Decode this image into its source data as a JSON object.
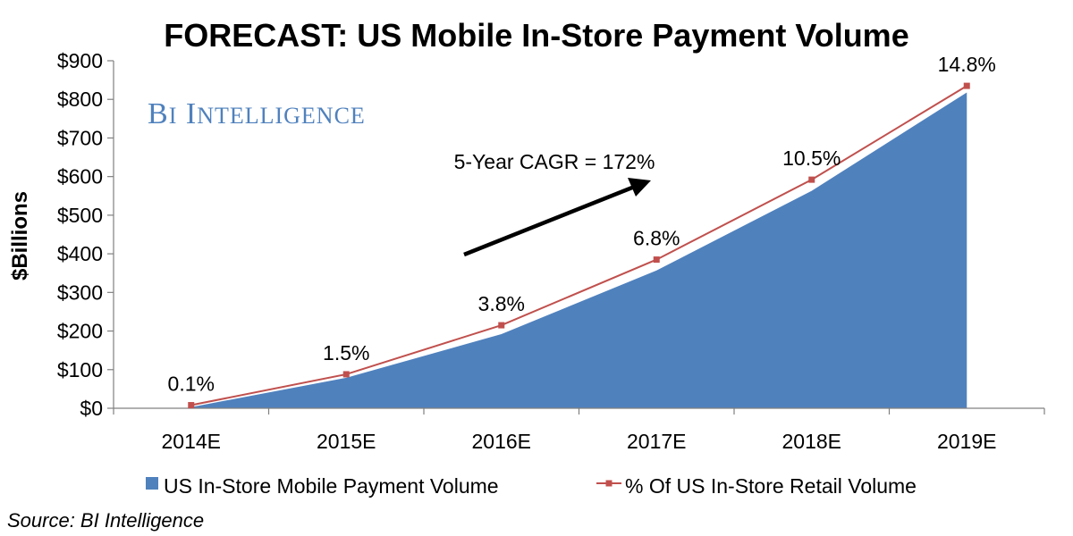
{
  "chart_data": {
    "type": "area",
    "title": "FORECAST: US Mobile In-Store Payment Volume",
    "xlabel": "",
    "ylabel": "$Billions",
    "categories": [
      "2014E",
      "2015E",
      "2016E",
      "2017E",
      "2018E",
      "2019E"
    ],
    "ylim": [
      0,
      900
    ],
    "yticks": [
      0,
      100,
      200,
      300,
      400,
      500,
      600,
      700,
      800,
      900
    ],
    "ytick_labels": [
      "$0",
      "$100",
      "$200",
      "$300",
      "$400",
      "$500",
      "$600",
      "$700",
      "$800",
      "$900"
    ],
    "series": [
      {
        "name": "US In-Store Mobile Payment Volume",
        "kind": "area",
        "color": "#4F81BD",
        "values": [
          3,
          79,
          192,
          357,
          563,
          818
        ]
      },
      {
        "name": "% Of US In-Store Retail Volume",
        "kind": "line",
        "color": "#C0504D",
        "values": [
          8,
          88,
          215,
          385,
          592,
          835
        ],
        "labels": [
          "0.1%",
          "1.5%",
          "3.8%",
          "6.8%",
          "10.5%",
          "14.8%"
        ]
      }
    ],
    "legend_position": "bottom",
    "grid": false,
    "annotation": {
      "text": "5-Year CAGR = 172%",
      "arrow_color": "#000000"
    },
    "watermark": {
      "text": "BI INTELLIGENCE",
      "color": "#4F81BD"
    },
    "source": "Source: BI Intelligence"
  }
}
